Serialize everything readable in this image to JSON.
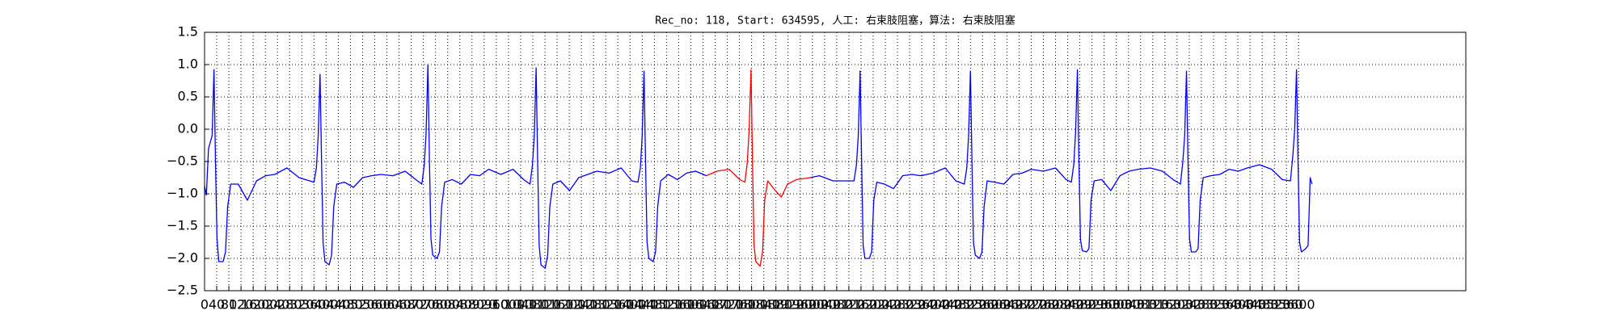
{
  "chart_data": {
    "type": "line",
    "title": "Rec_no: 118, Start: 634595, 人工: 右束肢阻塞，算法: 右束肢阻塞",
    "xlim": [
      0,
      4150
    ],
    "xticks": [
      0,
      40,
      80,
      120,
      160,
      200,
      240,
      280,
      320,
      360,
      400,
      440,
      480,
      520,
      560,
      600,
      640,
      680,
      720,
      760,
      800,
      840,
      880,
      920,
      960,
      1000,
      1040,
      1080,
      1120,
      1160,
      1200,
      1240,
      1280,
      1320,
      1360,
      1400,
      1440,
      1480,
      1520,
      1560,
      1600,
      1640,
      1680,
      1720,
      1760,
      1800,
      1840,
      1880,
      1920,
      1960,
      2000,
      2040,
      2080,
      2120,
      2160,
      2200,
      2240,
      2280,
      2320,
      2360,
      2400,
      2440,
      2480,
      2520,
      2560,
      2600,
      2640,
      2680,
      2720,
      2760,
      2800,
      2840,
      2880,
      2920,
      2960,
      3000,
      3040,
      3080,
      3120,
      3160,
      3200,
      3240,
      3280,
      3320,
      3360,
      3400,
      3440,
      3480,
      3520,
      3560,
      3600
    ],
    "ylim": [
      -2.5,
      1.5
    ],
    "yticks": [
      {
        "value": -2.5,
        "label": "−2.5"
      },
      {
        "value": -2,
        "label": "−2.0"
      },
      {
        "value": -1.5,
        "label": "−1.5"
      },
      {
        "value": -1,
        "label": "−1.0"
      },
      {
        "value": -0.5,
        "label": "−0.5"
      },
      {
        "value": 0,
        "label": "0.0"
      },
      0.5,
      {
        "value": 1,
        "label": "1.0"
      },
      1.5
    ],
    "grid": true,
    "series": [
      {
        "color": "#0000ff",
        "x": [
          0,
          6,
          13,
          19,
          25,
          31,
          36,
          41,
          47,
          61,
          69,
          76,
          86,
          111,
          141,
          171,
          201,
          231,
          271,
          311,
          346,
          360,
          368,
          374,
          380,
          385,
          390,
          396,
          410,
          418,
          425,
          435,
          460,
          490,
          520,
          550,
          580,
          620,
          660,
          695,
          715,
          723,
          729,
          735,
          740,
          745,
          751,
          765,
          773,
          780,
          790,
          815,
          845,
          875,
          905,
          935,
          975,
          1015,
          1050,
          1071,
          1079,
          1085,
          1091,
          1096,
          1101,
          1107,
          1121,
          1129,
          1136,
          1146,
          1171,
          1201,
          1231,
          1261,
          1291,
          1331,
          1371,
          1406,
          1426,
          1434,
          1440,
          1446,
          1451,
          1456,
          1462,
          1476,
          1484,
          1491,
          1501,
          1526,
          1556,
          1586,
          1616,
          1651,
          1800,
          1993,
          2023,
          2068,
          2137,
          2145,
          2151,
          2157,
          2162,
          2167,
          2173,
          2187,
          2195,
          2202,
          2212,
          2237,
          2267,
          2297,
          2327,
          2357,
          2397,
          2437,
          2472,
          2500,
          2508,
          2514,
          2520,
          2525,
          2530,
          2536,
          2550,
          2558,
          2565,
          2575,
          2600,
          2630,
          2660,
          2690,
          2720,
          2760,
          2800,
          2835,
          2852,
          2860,
          2866,
          2872,
          2877,
          2882,
          2888,
          2902,
          2910,
          2917,
          2927,
          2952,
          2982,
          3012,
          3042,
          3072,
          3112,
          3152,
          3187,
          3211,
          3219,
          3225,
          3231,
          3236,
          3241,
          3247,
          3261,
          3269,
          3276,
          3286,
          3311,
          3341,
          3371,
          3401,
          3431,
          3471,
          3511,
          3546,
          3573,
          3581,
          3587,
          3593,
          3598,
          3603,
          3609,
          3623,
          3631,
          3638,
          3644
        ],
        "values": [
          -0.88,
          -1.02,
          -0.3,
          -0.2,
          -0.1,
          0.92,
          -0.5,
          -1.7,
          -2.05,
          -2.05,
          -1.9,
          -1.2,
          -0.85,
          -0.85,
          -1.1,
          -0.8,
          -0.72,
          -0.7,
          -0.6,
          -0.75,
          -0.8,
          -0.82,
          -0.6,
          -0.1,
          0.85,
          -0.5,
          -1.75,
          -2.05,
          -2.1,
          -1.95,
          -1.2,
          -0.85,
          -0.82,
          -0.9,
          -0.75,
          -0.72,
          -0.7,
          -0.72,
          -0.65,
          -0.78,
          -0.85,
          -0.55,
          -0.05,
          1.0,
          -0.5,
          -1.7,
          -1.95,
          -2.0,
          -1.9,
          -1.2,
          -0.82,
          -0.78,
          -0.85,
          -0.7,
          -0.72,
          -0.62,
          -0.7,
          -0.62,
          -0.78,
          -0.85,
          -0.55,
          -0.1,
          0.95,
          -0.5,
          -1.8,
          -2.1,
          -2.15,
          -1.95,
          -1.2,
          -0.85,
          -0.8,
          -0.95,
          -0.75,
          -0.7,
          -0.65,
          -0.68,
          -0.6,
          -0.8,
          -0.82,
          -0.6,
          -0.1,
          0.9,
          -0.5,
          -1.75,
          -2.0,
          -2.05,
          -1.9,
          -1.2,
          -0.8,
          -0.7,
          -0.78,
          -0.68,
          -0.65,
          -0.72,
          null,
          -0.75,
          -0.72,
          -0.8,
          -0.8,
          -0.55,
          -0.1,
          0.9,
          -0.5,
          -1.8,
          -2.0,
          -2.0,
          -1.9,
          -1.1,
          -0.82,
          -0.85,
          -0.92,
          -0.72,
          -0.7,
          -0.72,
          -0.68,
          -0.6,
          -0.8,
          -0.85,
          -0.6,
          -0.1,
          0.9,
          -0.5,
          -1.75,
          -1.95,
          -2.0,
          -1.9,
          -1.2,
          -0.8,
          -0.82,
          -0.85,
          -0.7,
          -0.68,
          -0.62,
          -0.65,
          -0.6,
          -0.78,
          -0.82,
          -0.55,
          -0.05,
          0.92,
          -0.5,
          -1.7,
          -1.88,
          -1.9,
          -1.85,
          -1.1,
          -0.8,
          -0.78,
          -0.95,
          -0.72,
          -0.65,
          -0.62,
          -0.6,
          -0.65,
          -0.78,
          -0.85,
          -0.5,
          -0.1,
          0.9,
          -0.5,
          -1.7,
          -1.9,
          -1.9,
          -1.85,
          -1.1,
          -0.75,
          -0.72,
          -0.7,
          -0.62,
          -0.65,
          -0.6,
          -0.55,
          -0.62,
          -0.78,
          -0.8,
          -0.4,
          0.0,
          0.92,
          -0.5,
          -1.75,
          -1.9,
          -1.85,
          -1.8,
          -0.75,
          -0.85
        ]
      },
      {
        "color": "#ff0000",
        "x": [
          1651,
          1686,
          1726,
          1761,
          1778,
          1786,
          1792,
          1798,
          1803,
          1808,
          1814,
          1828,
          1836,
          1843,
          1853,
          1878,
          1898,
          1918,
          1948,
          1993
        ],
        "values": [
          -0.72,
          -0.65,
          -0.62,
          -0.78,
          -0.82,
          -0.5,
          0.0,
          0.92,
          -0.5,
          -1.8,
          -2.05,
          -2.12,
          -1.9,
          -1.1,
          -0.8,
          -0.95,
          -1.05,
          -0.85,
          -0.78,
          -0.75
        ]
      }
    ]
  }
}
